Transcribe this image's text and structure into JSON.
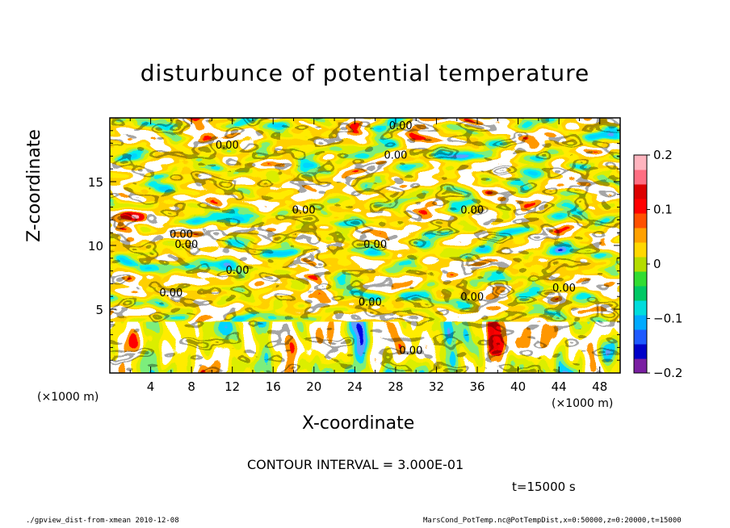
{
  "figure": {
    "title": "disturbunce of potential temperature",
    "contour_interval": "CONTOUR INTERVAL = 3.000E-01",
    "time_label": "t=15000 s",
    "footer_left": "./gpview_dist-from-xmean   2010-12-08",
    "footer_right": "MarsCond_PotTemp.nc@PotTempDist,x=0:50000,z=0:20000,t=15000",
    "x_unit_left": "(×1000 m)",
    "x_unit_right": "(×1000 m)"
  },
  "chart_data": {
    "type": "heatmap",
    "title": "disturbunce of potential temperature",
    "xlabel": "X-coordinate",
    "ylabel": "Z-coordinate",
    "x_unit": "×1000 m",
    "xlim": [
      0,
      50
    ],
    "ylim": [
      0,
      20
    ],
    "x_ticks": [
      4,
      8,
      12,
      16,
      20,
      24,
      28,
      32,
      36,
      40,
      44,
      48
    ],
    "y_ticks": [
      5,
      10,
      15
    ],
    "colorbar": {
      "min": -0.2,
      "max": 0.2,
      "tick_values": [
        0.2,
        0.1,
        0,
        -0.1,
        -0.2
      ],
      "tick_labels": [
        "0.2",
        "0.1",
        "0",
        "−0.1",
        "−0.2"
      ],
      "colors": [
        "#7a1fa2",
        "#0000c8",
        "#1e5aff",
        "#00aaff",
        "#00dcdc",
        "#00c864",
        "#32dc32",
        "#b4dc00",
        "#ffd700",
        "#ffa000",
        "#ff5000",
        "#ff0000",
        "#dc0000",
        "#ff6e82",
        "#ffb4be"
      ]
    },
    "contour_labels": [
      {
        "text": "0.00",
        "x": 28.5,
        "z": 19.1
      },
      {
        "text": "0.00",
        "x": 11.5,
        "z": 17.6
      },
      {
        "text": "0.00",
        "x": 28.0,
        "z": 16.8
      },
      {
        "text": "0.00",
        "x": 19.0,
        "z": 12.5
      },
      {
        "text": "0.00",
        "x": 35.5,
        "z": 12.5
      },
      {
        "text": "0.00",
        "x": 7.0,
        "z": 10.6
      },
      {
        "text": "0.00",
        "x": 7.5,
        "z": 9.8
      },
      {
        "text": "0.00",
        "x": 26.0,
        "z": 9.8
      },
      {
        "text": "0.00",
        "x": 12.5,
        "z": 7.8
      },
      {
        "text": "0.00",
        "x": 6.0,
        "z": 6.0
      },
      {
        "text": "0.00",
        "x": 25.5,
        "z": 5.3
      },
      {
        "text": "0.00",
        "x": 35.5,
        "z": 5.7
      },
      {
        "text": "0.00",
        "x": 44.5,
        "z": 6.4
      },
      {
        "text": "0.00",
        "x": 29.5,
        "z": 1.5
      }
    ]
  }
}
